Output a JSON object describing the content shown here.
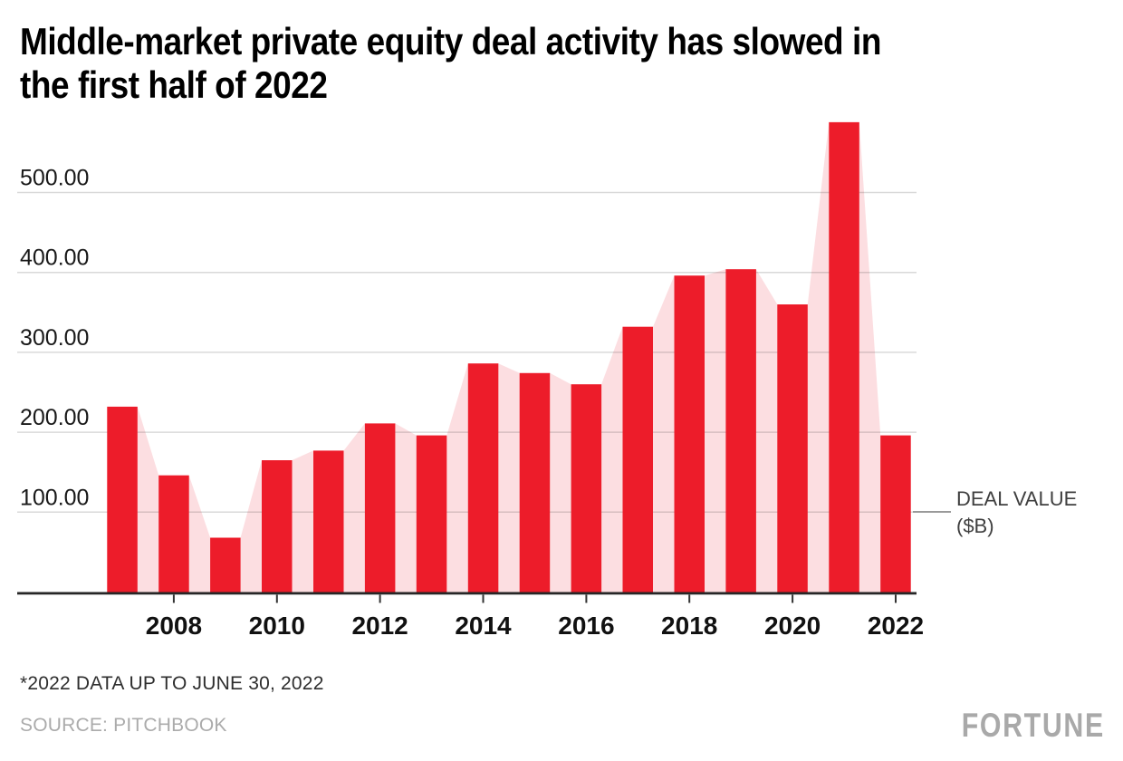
{
  "header": {
    "title_lines": [
      "Middle-market private equity deal activity has slowed in",
      "the first half of 2022"
    ]
  },
  "chart_data": {
    "type": "bar",
    "title": "Middle-market private equity deal activity has slowed in the first half of 2022",
    "ylabel": "DEAL VALUE ($B)",
    "series_label_lines": [
      "DEAL VALUE",
      "($B)"
    ],
    "categories": [
      "2007",
      "2008",
      "2009",
      "2010",
      "2011",
      "2012",
      "2013",
      "2014",
      "2015",
      "2016",
      "2017",
      "2018",
      "2019",
      "2020",
      "2021",
      "2022"
    ],
    "values": [
      232,
      146,
      68,
      165,
      177,
      211,
      196,
      286,
      274,
      260,
      332,
      396,
      404,
      360,
      588,
      196
    ],
    "render_styles": [
      "bars",
      "area-silhouette-behind-bars"
    ],
    "ylim": [
      0,
      600
    ],
    "y_ticks": [
      {
        "value": 100,
        "label": "100.00"
      },
      {
        "value": 200,
        "label": "200.00"
      },
      {
        "value": 300,
        "label": "300.00"
      },
      {
        "value": 400,
        "label": "400.00"
      },
      {
        "value": 500,
        "label": "500.00"
      }
    ],
    "x_ticks": [
      "2008",
      "2010",
      "2012",
      "2014",
      "2016",
      "2018",
      "2020",
      "2022"
    ],
    "grid": "horizontal",
    "legend_position": "right-of-last-bar",
    "colors": {
      "bar": "#ed1c2a",
      "area": "#fcdee1",
      "axis": "#262626",
      "tick": "#333333",
      "grid": "rgba(0,0,0,0.15)",
      "leader": "#9a9a9a"
    }
  },
  "footer": {
    "footnote": "*2022 DATA UP TO JUNE 30, 2022",
    "source": "SOURCE: PITCHBOOK",
    "brand": "FORTUNE"
  }
}
